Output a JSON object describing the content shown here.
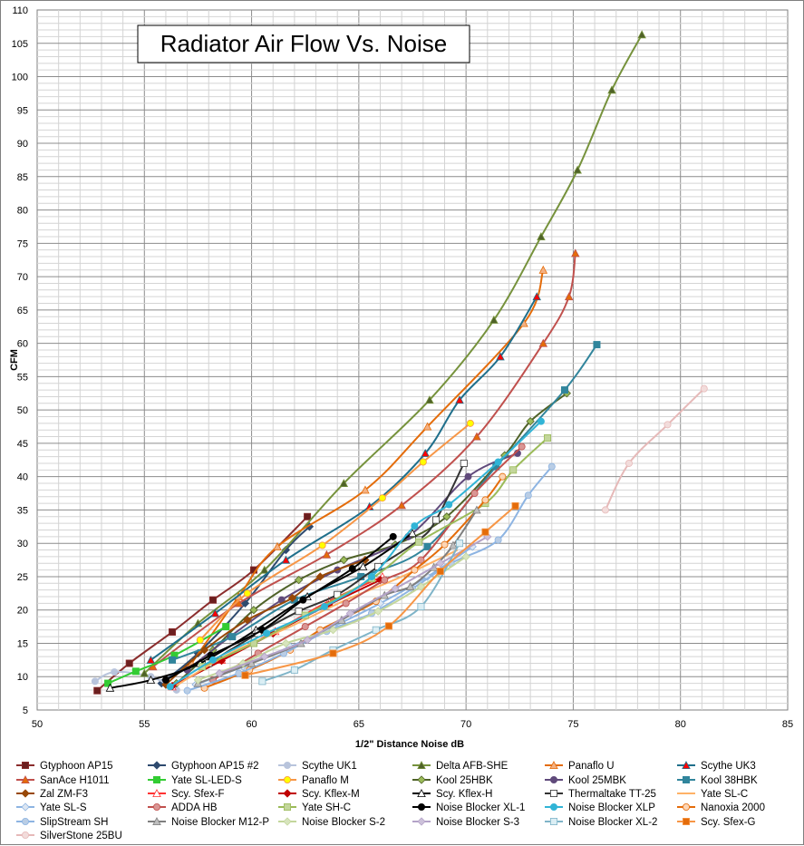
{
  "chart_data": {
    "type": "line",
    "title": "Radiator Air Flow Vs. Noise",
    "xlabel": "1/2\" Distance Noise dB",
    "ylabel": "CFM",
    "xlim": [
      50,
      85
    ],
    "ylim": [
      5,
      110
    ],
    "x_ticks": [
      "50",
      "55",
      "60",
      "65",
      "70",
      "75",
      "80",
      "85"
    ],
    "y_ticks": [
      "5",
      "10",
      "15",
      "20",
      "25",
      "30",
      "35",
      "40",
      "45",
      "50",
      "55",
      "60",
      "65",
      "70",
      "75",
      "80",
      "85",
      "90",
      "95",
      "100",
      "105",
      "110"
    ],
    "grid": true,
    "legend_position": "bottom",
    "series": [
      {
        "name": "Gtyphoon AP15",
        "color": "#8B2D2D",
        "marker": "square",
        "fill": "#6B1F1F",
        "x": [
          52.8,
          54.3,
          56.3,
          58.2,
          60.1,
          62.6
        ],
        "y": [
          7.9,
          12,
          16.7,
          21.5,
          26,
          34
        ]
      },
      {
        "name": "Gtyphoon AP15 #2",
        "color": "#2E4A6E",
        "marker": "diamond",
        "fill": "#2E4A6E",
        "x": [
          55.8,
          57.5,
          59.7,
          61.6,
          62.7
        ],
        "y": [
          9,
          13.5,
          21,
          29,
          32.5
        ]
      },
      {
        "name": "Scythe UK1",
        "color": "#B8C4DC",
        "marker": "circle",
        "fill": "#B8C4DC",
        "x": [
          52.7,
          53.6,
          55.3,
          56.5
        ],
        "y": [
          9.3,
          10.7,
          10,
          8
        ]
      },
      {
        "name": "Delta AFB-SHE",
        "color": "#76923C",
        "marker": "triangle",
        "fill": "#4F6228",
        "x": [
          55,
          57.5,
          60.6,
          64.3,
          68.3,
          71.3,
          73.5,
          75.2,
          76.8,
          78.2
        ],
        "y": [
          10.5,
          18,
          26,
          39,
          51.5,
          63.5,
          76,
          86,
          98,
          106.3
        ]
      },
      {
        "name": "Panaflo U",
        "color": "#E46C0A",
        "marker": "triangle",
        "fill": "#F4B183",
        "x": [
          57.2,
          59.4,
          61.2,
          65.3,
          68.2,
          72.7,
          73.6
        ],
        "y": [
          12,
          22,
          29.5,
          38,
          47.5,
          63,
          71
        ]
      },
      {
        "name": "Scythe UK3",
        "color": "#1F6F8B",
        "marker": "triangle",
        "fill": "#FF0000",
        "x": [
          55.3,
          58.3,
          61.6,
          65.5,
          68.1,
          69.7,
          71.6,
          73.3
        ],
        "y": [
          12.5,
          19.5,
          27.5,
          35.5,
          43.5,
          51.5,
          58,
          67
        ]
      },
      {
        "name": "SanAce H1011",
        "color": "#C0504D",
        "marker": "triangle",
        "fill": "#E46C0A",
        "x": [
          55.4,
          59.4,
          63.5,
          67,
          70.5,
          73.6,
          74.8,
          75.1
        ],
        "y": [
          11.5,
          21,
          28.3,
          35.7,
          46,
          60,
          67,
          73.5
        ]
      },
      {
        "name": "Yate SL-LED-S",
        "color": "#33CC33",
        "marker": "square",
        "fill": "#33CC33",
        "x": [
          53.3,
          54.6,
          56.4,
          58.8
        ],
        "y": [
          9,
          10.8,
          13.2,
          17.5
        ]
      },
      {
        "name": "Panaflo M",
        "color": "#F79646",
        "marker": "circle",
        "fill": "#FFFF00",
        "x": [
          57.6,
          59.8,
          63.3,
          66.1,
          68,
          70.2
        ],
        "y": [
          15.5,
          22.5,
          29.7,
          36.8,
          42.2,
          48
        ]
      },
      {
        "name": "Kool 25HBK",
        "color": "#4F6228",
        "marker": "diamond",
        "fill": "#9BBB59",
        "x": [
          56.5,
          58.2,
          60.1,
          62.2,
          64.3,
          66.7,
          69.1,
          71.8,
          73,
          74.7
        ],
        "y": [
          9,
          14,
          20,
          24.5,
          27.5,
          29.8,
          34,
          43.2,
          48.3,
          52.5
        ]
      },
      {
        "name": "Kool 25MBK",
        "color": "#604A7B",
        "marker": "circle",
        "fill": "#604A7B",
        "x": [
          57,
          59,
          61.4,
          64,
          67.3,
          70.1,
          72.4
        ],
        "y": [
          11,
          16,
          21.5,
          26,
          31,
          40,
          43.5
        ]
      },
      {
        "name": "Kool 38HBK",
        "color": "#31859C",
        "marker": "square",
        "fill": "#31859C",
        "x": [
          56.3,
          59.1,
          62,
          65.1,
          68.2,
          71.4,
          74.6,
          76.1
        ],
        "y": [
          12.5,
          16,
          21.5,
          25,
          29.5,
          41.5,
          53,
          59.8
        ]
      },
      {
        "name": "Zal ZM-F3",
        "color": "#984807",
        "marker": "diamond",
        "fill": "#984807",
        "x": [
          56,
          57.8,
          59.8,
          61.9,
          63.2,
          65.3
        ],
        "y": [
          8.8,
          14,
          18.5,
          21.8,
          25,
          27.5
        ]
      },
      {
        "name": "Scy. Sfex-F",
        "color": "#FF3333",
        "marker": "triangle",
        "fill": "#FFFFFF",
        "x": [
          56.3,
          58.6,
          61.1,
          63.6,
          66.1
        ],
        "y": [
          8.5,
          12.5,
          16.8,
          21.3,
          25
        ]
      },
      {
        "name": "Scy. Kflex-M",
        "color": "#C00000",
        "marker": "diamond",
        "fill": "#C00000",
        "x": [
          56.3,
          58.6,
          61,
          63.6,
          66
        ],
        "y": [
          8.6,
          12.4,
          16.5,
          20.8,
          24.5
        ]
      },
      {
        "name": "Scy. Kflex-H",
        "color": "#000000",
        "marker": "triangle",
        "fill": "#FFFFFF",
        "x": [
          53.4,
          55.3,
          57.6,
          60.2,
          62.6,
          65.2,
          67.5
        ],
        "y": [
          8.3,
          9.5,
          12,
          17,
          22,
          26.5,
          31.5
        ]
      },
      {
        "name": "Thermaltake TT-25",
        "color": "#333333",
        "marker": "square",
        "fill": "#FFFFFF",
        "x": [
          58,
          60.3,
          62.2,
          64,
          65.9,
          67.8,
          68.6,
          69.9
        ],
        "y": [
          12,
          16.5,
          19.8,
          22.3,
          26.5,
          30.5,
          33.5,
          42
        ]
      },
      {
        "name": "Yate SL-C",
        "color": "#FFB266",
        "marker": "none",
        "fill": "#FFB266",
        "x": [
          56.5,
          59,
          61.8,
          64.4,
          67,
          69.6
        ],
        "y": [
          8.7,
          13.5,
          17.5,
          21.5,
          25,
          29
        ]
      },
      {
        "name": "Yate SL-S",
        "color": "#8DB4E2",
        "marker": "diamond",
        "fill": "#DCE6F2",
        "x": [
          57.4,
          59.6,
          61.8,
          63.8,
          66,
          68.2,
          70.3
        ],
        "y": [
          8.8,
          11.5,
          14.5,
          17.5,
          21,
          25,
          29.5
        ]
      },
      {
        "name": "ADDA HB",
        "color": "#C0504D",
        "marker": "circle",
        "fill": "#D99694",
        "x": [
          58.2,
          60.3,
          62.5,
          64.4,
          66.2,
          67.9,
          70.4,
          72.6
        ],
        "y": [
          9.5,
          13.5,
          17.5,
          21,
          24.5,
          27.5,
          37.5,
          44.5
        ]
      },
      {
        "name": "Yate SH-C",
        "color": "#9BBB59",
        "marker": "square",
        "fill": "#C3D69B",
        "x": [
          57.7,
          60.1,
          62.5,
          65.6,
          67.8,
          70.9,
          72.2,
          73.8
        ],
        "y": [
          11.5,
          15,
          19.2,
          24.7,
          30.2,
          36,
          41,
          45.8
        ]
      },
      {
        "name": "Noise Blocker XL-1",
        "color": "#000000",
        "marker": "circle",
        "fill": "#000000",
        "x": [
          56,
          58.1,
          60.5,
          62.4,
          64.7,
          66.6
        ],
        "y": [
          9.5,
          13.2,
          17,
          21.5,
          26.2,
          31
        ]
      },
      {
        "name": "Noise Blocker XLP",
        "color": "#31B4D6",
        "marker": "circle",
        "fill": "#31B4D6",
        "x": [
          56.2,
          58.2,
          60.7,
          63.4,
          65.6,
          67.6,
          69.2,
          71.5,
          73.5
        ],
        "y": [
          8.5,
          12.5,
          16.5,
          20.5,
          25,
          32.6,
          35.8,
          42.2,
          48.3
        ]
      },
      {
        "name": "Nanoxia 2000",
        "color": "#E46C0A",
        "marker": "circle",
        "fill": "#FCD5B5",
        "x": [
          57.8,
          59.9,
          61.8,
          63.2,
          65.8,
          67.6,
          69,
          70.9,
          71.7
        ],
        "y": [
          8.3,
          11,
          14,
          17,
          21.3,
          26,
          29.8,
          36.5,
          40
        ]
      },
      {
        "name": "SlipStream SH",
        "color": "#8DB4E2",
        "marker": "circle",
        "fill": "#B9CDE5",
        "x": [
          57,
          59.4,
          61.5,
          63.5,
          65.6,
          67.5,
          69.3,
          71.5,
          72.9,
          74
        ],
        "y": [
          7.9,
          10.5,
          13.5,
          16.8,
          19.5,
          23.2,
          27,
          30.5,
          37.2,
          41.5
        ]
      },
      {
        "name": "Noise Blocker M12-P",
        "color": "#7F7F7F",
        "marker": "triangle",
        "fill": "#BFBFBF",
        "x": [
          57.5,
          60,
          62.3,
          64.2,
          66.2,
          67.4,
          68.5,
          69.4,
          70.5
        ],
        "y": [
          9,
          12,
          15,
          18.5,
          22.2,
          23.5,
          26.4,
          29.7,
          35
        ]
      },
      {
        "name": "Noise Blocker S-2",
        "color": "#C3D69B",
        "marker": "diamond",
        "fill": "#D7E4BD",
        "x": [
          57.5,
          59.6,
          61.6,
          63.8,
          65.9,
          67.9,
          70
        ],
        "y": [
          9.5,
          12,
          15,
          17,
          19.8,
          23.5,
          28
        ]
      },
      {
        "name": "Noise Blocker S-3",
        "color": "#B3A2C7",
        "marker": "diamond",
        "fill": "#CCC1DA",
        "x": [
          58.5,
          60.6,
          62.6,
          64.6,
          66.7,
          68.8,
          71
        ],
        "y": [
          10.5,
          13,
          15.5,
          19.5,
          23.2,
          27,
          31
        ]
      },
      {
        "name": "Noise Blocker XL-2",
        "color": "#7FB4C8",
        "marker": "square",
        "fill": "#DBEEF4",
        "x": [
          60.5,
          62,
          63.8,
          65.8,
          67.9,
          69.7
        ],
        "y": [
          9.3,
          11,
          14,
          17,
          20.5,
          30
        ]
      },
      {
        "name": "Scy. Sfex-G",
        "color": "#F79646",
        "marker": "square",
        "fill": "#E46C0A",
        "x": [
          59.7,
          63.8,
          66.4,
          68.8,
          70.9,
          72.3
        ],
        "y": [
          10.2,
          13.5,
          17.6,
          25.8,
          31.7,
          35.6
        ]
      },
      {
        "name": "SilverStone 25BU",
        "color": "#E6B9B8",
        "marker": "circle",
        "fill": "#F2DCDB",
        "x": [
          76.5,
          77.6,
          79.4,
          81.1
        ],
        "y": [
          35,
          42,
          47.8,
          53.2
        ]
      }
    ]
  }
}
